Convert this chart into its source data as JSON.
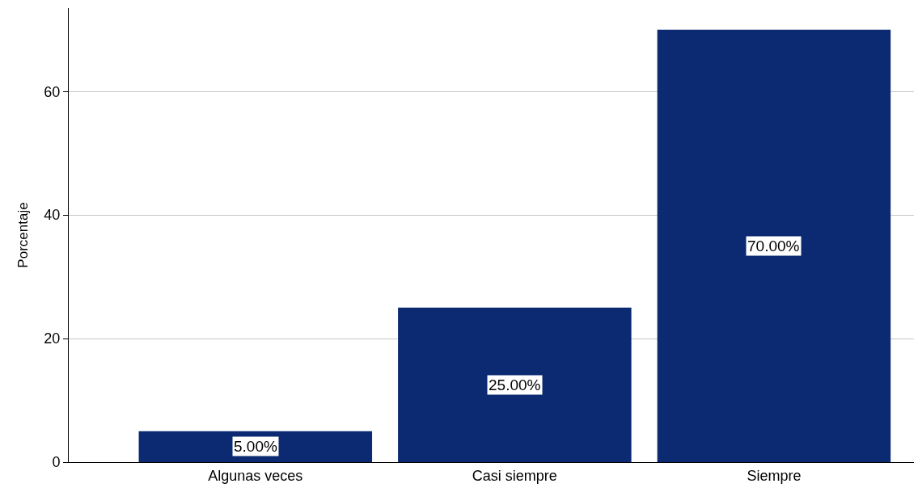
{
  "chart_data": {
    "type": "bar",
    "ylabel": "Porcentaje",
    "categories": [
      "Algunas veces",
      "Casi siempre",
      "Siempre"
    ],
    "values": [
      5,
      25,
      70
    ],
    "color": "#0b2a72",
    "value_labels": [
      "5.00%",
      "25.00%",
      "70.00%"
    ],
    "ylim": [
      0,
      73.5
    ],
    "yticks": [
      0,
      20,
      40,
      60
    ],
    "grid": "y"
  }
}
